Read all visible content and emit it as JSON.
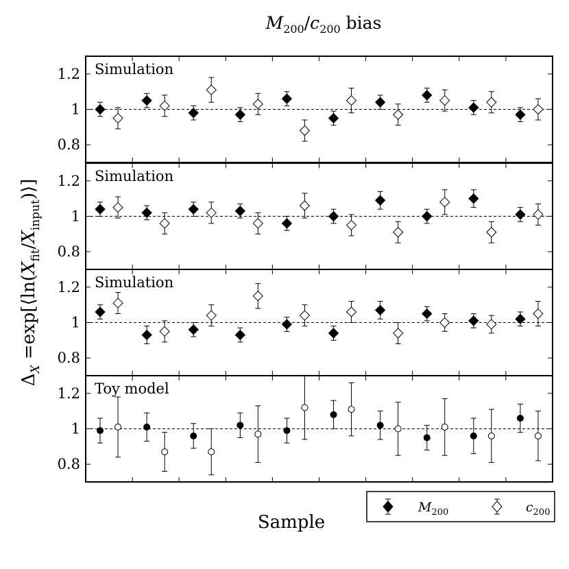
{
  "chart_data": {
    "type": "scatter",
    "title": "M200/c200 bias",
    "xlabel": "Sample",
    "ylabel": "ΔX =exp[⟨ln(Xfit/Xinput)⟩]",
    "ylim": [
      0.7,
      1.3
    ],
    "yticks": [
      "0.8",
      "1",
      "1.2"
    ],
    "reference_line": 1.0,
    "x_positions": [
      1,
      2,
      3,
      4,
      5,
      6,
      7,
      8,
      9,
      10
    ],
    "legend": {
      "placement": "bottom-right, outside plot",
      "entries": [
        "M200",
        "c200"
      ]
    },
    "panels": [
      {
        "title": "Simulation",
        "marker": "diamond",
        "series": [
          {
            "name": "M200",
            "fill": "filled",
            "values": [
              1.0,
              1.05,
              0.98,
              0.97,
              1.06,
              0.95,
              1.04,
              1.08,
              1.01,
              0.97
            ],
            "errors": [
              0.04,
              0.04,
              0.04,
              0.04,
              0.04,
              0.04,
              0.04,
              0.04,
              0.04,
              0.04
            ]
          },
          {
            "name": "c200",
            "fill": "open",
            "values": [
              0.95,
              1.02,
              1.11,
              1.03,
              0.88,
              1.05,
              0.97,
              1.05,
              1.04,
              1.0
            ],
            "errors": [
              0.06,
              0.06,
              0.07,
              0.06,
              0.06,
              0.07,
              0.06,
              0.06,
              0.06,
              0.06
            ]
          }
        ]
      },
      {
        "title": "Simulation",
        "marker": "diamond",
        "series": [
          {
            "name": "M200",
            "fill": "filled",
            "values": [
              1.04,
              1.02,
              1.04,
              1.03,
              0.96,
              1.0,
              1.09,
              1.0,
              1.1,
              1.01
            ],
            "errors": [
              0.04,
              0.04,
              0.04,
              0.04,
              0.04,
              0.04,
              0.05,
              0.04,
              0.05,
              0.04
            ]
          },
          {
            "name": "c200",
            "fill": "open",
            "values": [
              1.05,
              0.96,
              1.02,
              0.96,
              1.06,
              0.95,
              0.91,
              1.08,
              0.91,
              1.01
            ],
            "errors": [
              0.06,
              0.06,
              0.06,
              0.06,
              0.07,
              0.06,
              0.06,
              0.07,
              0.06,
              0.06
            ]
          }
        ]
      },
      {
        "title": "Simulation",
        "marker": "diamond",
        "series": [
          {
            "name": "M200",
            "fill": "filled",
            "values": [
              1.06,
              0.93,
              0.96,
              0.93,
              0.99,
              0.94,
              1.07,
              1.05,
              1.01,
              1.02
            ],
            "errors": [
              0.04,
              0.05,
              0.04,
              0.04,
              0.04,
              0.04,
              0.05,
              0.04,
              0.04,
              0.04
            ]
          },
          {
            "name": "c200",
            "fill": "open",
            "values": [
              1.11,
              0.95,
              1.04,
              1.15,
              1.04,
              1.06,
              0.94,
              1.0,
              0.99,
              1.05
            ],
            "errors": [
              0.06,
              0.06,
              0.06,
              0.07,
              0.06,
              0.06,
              0.06,
              0.05,
              0.05,
              0.07
            ]
          }
        ]
      },
      {
        "title": "Toy model",
        "marker": "circle",
        "series": [
          {
            "name": "M200",
            "fill": "filled",
            "values": [
              0.99,
              1.01,
              0.96,
              1.02,
              0.99,
              1.08,
              1.02,
              0.95,
              0.96,
              1.06
            ],
            "errors": [
              0.07,
              0.08,
              0.07,
              0.07,
              0.07,
              0.08,
              0.08,
              0.07,
              0.1,
              0.08
            ]
          },
          {
            "name": "c200",
            "fill": "open",
            "values": [
              1.01,
              0.87,
              0.87,
              0.97,
              1.12,
              1.11,
              1.0,
              1.01,
              0.96,
              0.96
            ],
            "errors": [
              0.17,
              0.11,
              0.13,
              0.16,
              0.18,
              0.15,
              0.15,
              0.16,
              0.15,
              0.14
            ]
          }
        ]
      }
    ]
  }
}
